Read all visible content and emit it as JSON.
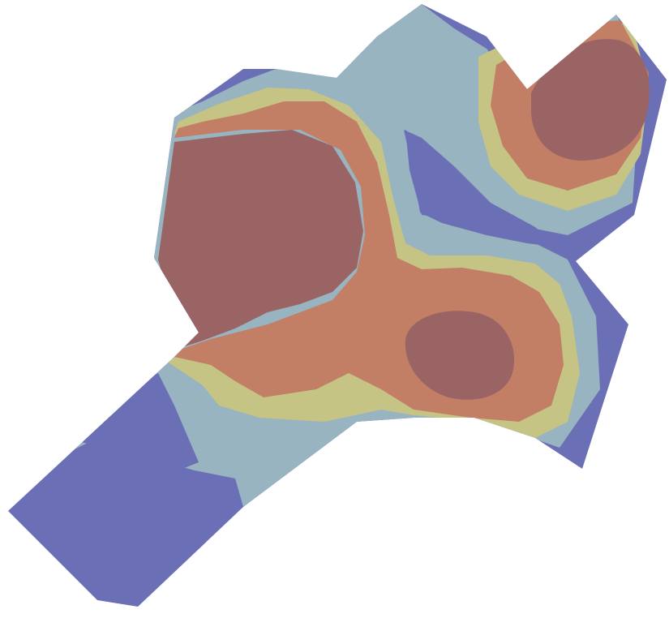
{
  "map": {
    "type": "filled-contour-map",
    "background": "#ffffff",
    "legend": "none",
    "palette": {
      "level_1": "#6b6fb5",
      "level_2": "#98b4c0",
      "level_3": "#c6c485",
      "level_4": "#c27f66",
      "level_5": "#9a6465"
    },
    "levels": [
      {
        "band": "level_1",
        "color": "#6b6fb5"
      },
      {
        "band": "level_2",
        "color": "#98b4c0"
      },
      {
        "band": "level_3",
        "color": "#c6c485"
      },
      {
        "band": "level_4",
        "color": "#c27f66"
      },
      {
        "band": "level_5",
        "color": "#9a6465"
      }
    ]
  }
}
